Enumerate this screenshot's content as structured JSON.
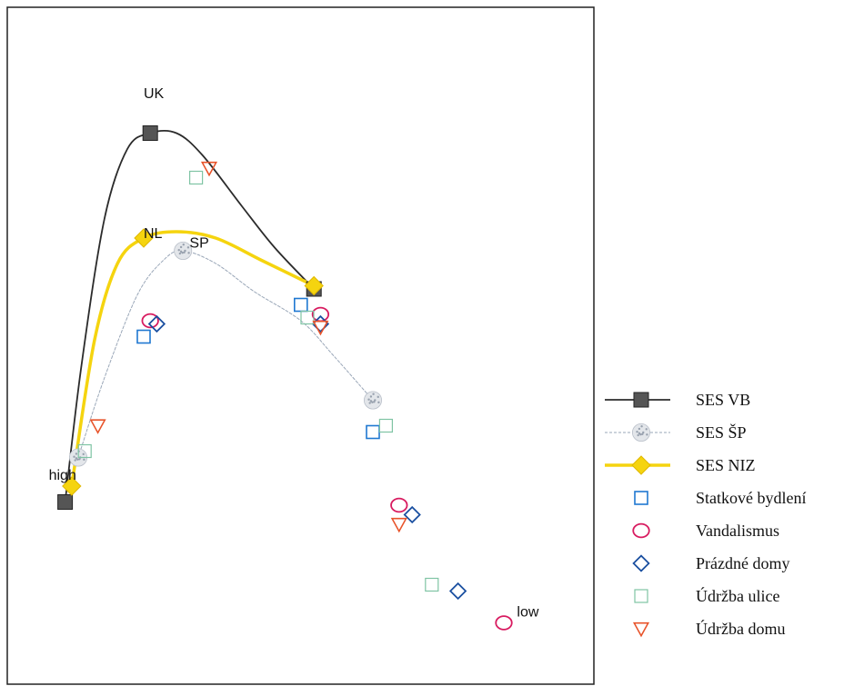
{
  "chart_data": {
    "type": "scatter",
    "title": "",
    "xlabel": "",
    "ylabel": "",
    "grid": false,
    "legend_position": "right",
    "axes_visible": false,
    "annotations": [
      {
        "text": "UK",
        "x": 1.5,
        "y": 9.1
      },
      {
        "text": "NL",
        "x": 1.5,
        "y": 6.9
      },
      {
        "text": "SP",
        "x": 2.2,
        "y": 6.75
      },
      {
        "text": "high",
        "x": 0.05,
        "y": 3.1
      },
      {
        "text": "low",
        "x": 7.2,
        "y": 0.95
      }
    ],
    "series": [
      {
        "name": "SES VB",
        "kind": "curve",
        "style": "line-marker",
        "marker": "square-filled",
        "color": "#2b2b2b",
        "marker_color": "#555555",
        "points": [
          [
            0.3,
            2.75
          ],
          [
            1.6,
            8.55
          ],
          [
            4.1,
            6.1
          ]
        ],
        "curve": [
          [
            0.3,
            2.75
          ],
          [
            0.55,
            4.9
          ],
          [
            0.9,
            7.2
          ],
          [
            1.25,
            8.3
          ],
          [
            1.6,
            8.55
          ],
          [
            2.0,
            8.55
          ],
          [
            2.4,
            8.2
          ],
          [
            3.0,
            7.4
          ],
          [
            3.5,
            6.75
          ],
          [
            4.1,
            6.1
          ]
        ]
      },
      {
        "name": "SES ŠP",
        "kind": "curve",
        "style": "line-marker",
        "marker": "speckled-circle",
        "color": "#9aa7b8",
        "marker_color": "#a8afbb",
        "points": [
          [
            0.5,
            3.45
          ],
          [
            2.1,
            6.7
          ],
          [
            5.0,
            4.35
          ]
        ],
        "curve": [
          [
            0.5,
            3.45
          ],
          [
            0.9,
            4.7
          ],
          [
            1.4,
            6.0
          ],
          [
            1.8,
            6.55
          ],
          [
            2.1,
            6.7
          ],
          [
            2.6,
            6.5
          ],
          [
            3.2,
            6.05
          ],
          [
            3.9,
            5.6
          ],
          [
            4.4,
            5.05
          ],
          [
            5.0,
            4.35
          ]
        ]
      },
      {
        "name": "SES NIZ",
        "kind": "curve",
        "style": "line-marker",
        "marker": "diamond-filled",
        "color": "#f5d40f",
        "marker_color": "#f5d40f",
        "points": [
          [
            0.4,
            3.0
          ],
          [
            1.5,
            6.9
          ],
          [
            4.1,
            6.15
          ]
        ],
        "curve": [
          [
            0.4,
            3.0
          ],
          [
            0.75,
            5.3
          ],
          [
            1.1,
            6.5
          ],
          [
            1.5,
            6.9
          ],
          [
            2.0,
            7.0
          ],
          [
            2.6,
            6.9
          ],
          [
            3.3,
            6.55
          ],
          [
            4.1,
            6.15
          ]
        ]
      },
      {
        "name": "Statkové bydlení",
        "kind": "points",
        "marker": "square-open",
        "color": "#1f78d1",
        "points": [
          [
            1.5,
            5.35
          ],
          [
            3.9,
            5.85
          ],
          [
            5.0,
            3.85
          ]
        ]
      },
      {
        "name": "Vandalismus",
        "kind": "points",
        "marker": "circle-open",
        "color": "#d81b60",
        "points": [
          [
            1.6,
            5.6
          ],
          [
            4.2,
            5.7
          ],
          [
            5.4,
            2.7
          ],
          [
            7.0,
            0.85
          ]
        ]
      },
      {
        "name": "Prázdné domy",
        "kind": "points",
        "marker": "diamond-open",
        "color": "#1a4fa0",
        "points": [
          [
            1.7,
            5.55
          ],
          [
            4.2,
            5.55
          ],
          [
            5.6,
            2.55
          ],
          [
            6.3,
            1.35
          ]
        ]
      },
      {
        "name": "Údržba ulice",
        "kind": "points",
        "marker": "square-open-light",
        "color": "#7fc4a4",
        "points": [
          [
            0.6,
            3.55
          ],
          [
            2.3,
            7.85
          ],
          [
            4.0,
            5.65
          ],
          [
            5.2,
            3.95
          ],
          [
            5.9,
            1.45
          ]
        ]
      },
      {
        "name": "Údržba domu",
        "kind": "points",
        "marker": "triangle-down-open",
        "color": "#e8542b",
        "points": [
          [
            0.8,
            3.95
          ],
          [
            2.5,
            8.0
          ],
          [
            4.2,
            5.5
          ],
          [
            5.4,
            2.4
          ]
        ]
      }
    ]
  }
}
